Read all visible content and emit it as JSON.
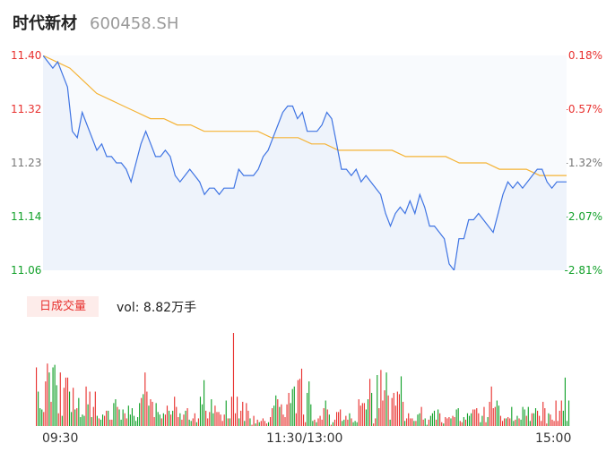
{
  "header": {
    "name": "时代新材",
    "code": "600458.SH"
  },
  "price_axis": [
    "11.40",
    "11.32",
    "11.23",
    "11.14",
    "11.06"
  ],
  "percent_axis": [
    "0.18%",
    "-0.57%",
    "-1.32%",
    "-2.07%",
    "-2.81%"
  ],
  "colors": {
    "up": "#e8312f",
    "down": "#12a12a",
    "price_line": "#3f74e3",
    "avg_line": "#f5b335"
  },
  "volume": {
    "tab_label": "日成交量",
    "text": "vol: 8.82万手"
  },
  "time_axis": [
    "09:30",
    "11:30/13:00",
    "15:00"
  ],
  "chart_data": {
    "type": "line",
    "ylim": [
      11.06,
      11.4
    ],
    "x_range": [
      "09:30",
      "15:00"
    ],
    "series": [
      {
        "values": [
          11.4,
          11.39,
          11.38,
          11.39,
          11.37,
          11.35,
          11.28,
          11.27,
          11.31,
          11.29,
          11.27,
          11.25,
          11.26,
          11.24,
          11.24,
          11.23,
          11.23,
          11.22,
          11.2,
          11.23,
          11.26,
          11.28,
          11.26,
          11.24,
          11.24,
          11.25,
          11.24,
          11.21,
          11.2,
          11.21,
          11.22,
          11.21,
          11.2,
          11.18,
          11.19,
          11.19,
          11.18,
          11.19,
          11.19,
          11.19,
          11.22,
          11.21,
          11.21,
          11.21,
          11.22,
          11.24,
          11.25,
          11.27,
          11.29,
          11.31,
          11.32,
          11.32,
          11.3,
          11.31,
          11.28,
          11.28,
          11.28,
          11.29,
          11.31,
          11.3,
          11.26,
          11.22,
          11.22,
          11.21,
          11.22,
          11.2,
          11.21,
          11.2,
          11.19,
          11.18,
          11.15,
          11.13,
          11.15,
          11.16,
          11.15,
          11.17,
          11.15,
          11.18,
          11.16,
          11.13,
          11.13,
          11.12,
          11.11,
          11.07,
          11.06,
          11.11,
          11.11,
          11.14,
          11.14,
          11.15,
          11.14,
          11.13,
          11.12,
          11.15,
          11.18,
          11.2,
          11.19,
          11.2,
          11.19,
          11.2,
          11.21,
          11.22,
          11.22,
          11.2,
          11.19,
          11.2,
          11.2,
          11.2
        ]
      },
      {
        "values": [
          11.4,
          11.39,
          11.38,
          11.36,
          11.34,
          11.33,
          11.32,
          11.31,
          11.3,
          11.3,
          11.29,
          11.29,
          11.28,
          11.28,
          11.28,
          11.28,
          11.28,
          11.27,
          11.27,
          11.27,
          11.26,
          11.26,
          11.25,
          11.25,
          11.25,
          11.25,
          11.25,
          11.24,
          11.24,
          11.24,
          11.24,
          11.23,
          11.23,
          11.23,
          11.22,
          11.22,
          11.22,
          11.21,
          11.21,
          11.21
        ]
      }
    ]
  },
  "volume_data": {
    "type": "bar",
    "values": [
      46,
      27,
      14,
      13,
      11,
      35,
      49,
      42,
      19,
      46,
      48,
      32,
      10,
      42,
      8,
      30,
      38,
      38,
      27,
      11,
      30,
      13,
      14,
      22,
      7,
      9,
      8,
      31,
      17,
      27,
      7,
      15,
      27,
      8,
      6,
      5,
      9,
      8,
      12,
      12,
      5,
      5,
      18,
      21,
      15,
      13,
      5,
      13,
      10,
      6,
      16,
      9,
      14,
      8,
      4,
      7,
      18,
      22,
      25,
      42,
      27,
      16,
      21,
      19,
      7,
      18,
      11,
      9,
      6,
      10,
      9,
      16,
      12,
      9,
      12,
      23,
      15,
      7,
      10,
      5,
      9,
      12,
      14,
      5,
      4,
      6,
      10,
      3,
      6,
      23,
      17,
      36,
      12,
      6,
      11,
      21,
      10,
      16,
      11,
      11,
      9,
      4,
      9,
      20,
      6,
      6,
      23,
      73,
      10,
      23,
      6,
      12,
      19,
      4,
      18,
      12,
      6,
      1,
      8,
      2,
      5,
      3,
      4,
      6,
      4,
      2,
      3,
      7,
      14,
      16,
      24,
      21,
      15,
      17,
      9,
      7,
      17,
      26,
      18,
      29,
      31,
      10,
      36,
      37,
      45,
      9,
      3,
      26,
      35,
      17,
      4,
      5,
      3,
      6,
      8,
      5,
      14,
      20,
      13,
      9,
      1,
      3,
      5,
      11,
      11,
      13,
      4,
      5,
      8,
      5,
      10,
      6,
      3,
      4,
      3,
      21,
      16,
      18,
      18,
      13,
      21,
      37,
      26,
      2,
      6,
      40,
      14,
      44,
      20,
      28,
      42,
      24,
      5,
      22,
      26,
      16,
      27,
      25,
      39,
      19,
      4,
      6,
      10,
      6,
      6,
      4,
      4,
      9,
      10,
      15,
      5,
      6,
      1,
      5,
      8,
      10,
      12,
      5,
      13,
      10,
      3,
      2,
      7,
      6,
      7,
      6,
      8,
      7,
      13,
      14,
      4,
      3,
      7,
      5,
      10,
      8,
      10,
      13,
      13,
      14,
      10,
      3,
      8,
      15,
      3,
      7,
      19,
      31,
      14,
      15,
      20,
      16,
      8,
      4,
      6,
      6,
      7,
      6,
      15,
      4,
      5,
      8,
      6,
      5,
      15,
      13,
      8,
      15,
      4,
      10,
      10,
      14,
      12,
      8,
      4,
      19,
      14,
      2,
      10,
      9,
      5,
      4,
      20,
      4,
      12,
      20,
      12,
      38,
      4,
      20
    ],
    "up": [
      1,
      0,
      0,
      0,
      1,
      1,
      1,
      0,
      1,
      0,
      0,
      0,
      1,
      1,
      0,
      1,
      1,
      1,
      0,
      0,
      1,
      0,
      1,
      0,
      0,
      0,
      0,
      1,
      0,
      1,
      0,
      1,
      1,
      0,
      1,
      0,
      0,
      1,
      1,
      0,
      1,
      1,
      0,
      0,
      1,
      0,
      0,
      0,
      1,
      1,
      0,
      0,
      0,
      0,
      0,
      0,
      0,
      1,
      0,
      1,
      1,
      0,
      1,
      1,
      1,
      0,
      0,
      0,
      1,
      0,
      1,
      1,
      0,
      1,
      0,
      1,
      1,
      1,
      0,
      1,
      1,
      0,
      1,
      0,
      0,
      1,
      1,
      0,
      1,
      0,
      0,
      0,
      1,
      1,
      1,
      0,
      0,
      1,
      1,
      1,
      1,
      1,
      1,
      0,
      1,
      0,
      1,
      1,
      1,
      1,
      0,
      1,
      1,
      0,
      1,
      1,
      0,
      1,
      1,
      0,
      1,
      0,
      1,
      1,
      1,
      1,
      0,
      1,
      1,
      0,
      0,
      1,
      0,
      1,
      1,
      1,
      1,
      1,
      0,
      0,
      0,
      1,
      1,
      1,
      1,
      1,
      1,
      0,
      0,
      0,
      0,
      1,
      0,
      1,
      1,
      1,
      1,
      0,
      1,
      0,
      1,
      0,
      1,
      1,
      1,
      1,
      0,
      0,
      1,
      1,
      0,
      1,
      0,
      0,
      0,
      1,
      1,
      1,
      1,
      0,
      0,
      1,
      0,
      1,
      1,
      0,
      1,
      1,
      1,
      1,
      0,
      1,
      0,
      1,
      1,
      1,
      1,
      1,
      0,
      1,
      0,
      1,
      1,
      1,
      1,
      0,
      1,
      0,
      0,
      1,
      1,
      0,
      0,
      1,
      0,
      0,
      0,
      1,
      0,
      1,
      1,
      0,
      1,
      1,
      1,
      0,
      1,
      1,
      0,
      0,
      1,
      1,
      0,
      1,
      0,
      0,
      0,
      1,
      1,
      1,
      1,
      0,
      0,
      1,
      1,
      0,
      1,
      1,
      1,
      1,
      0,
      0,
      1,
      1,
      1,
      0,
      1,
      1,
      0,
      0,
      1,
      0,
      1,
      0,
      0,
      0,
      1,
      0,
      0,
      1,
      0,
      0,
      1,
      1,
      1,
      1,
      1,
      1,
      0,
      1,
      1,
      1,
      1,
      1,
      1,
      1,
      0,
      0
    ]
  }
}
